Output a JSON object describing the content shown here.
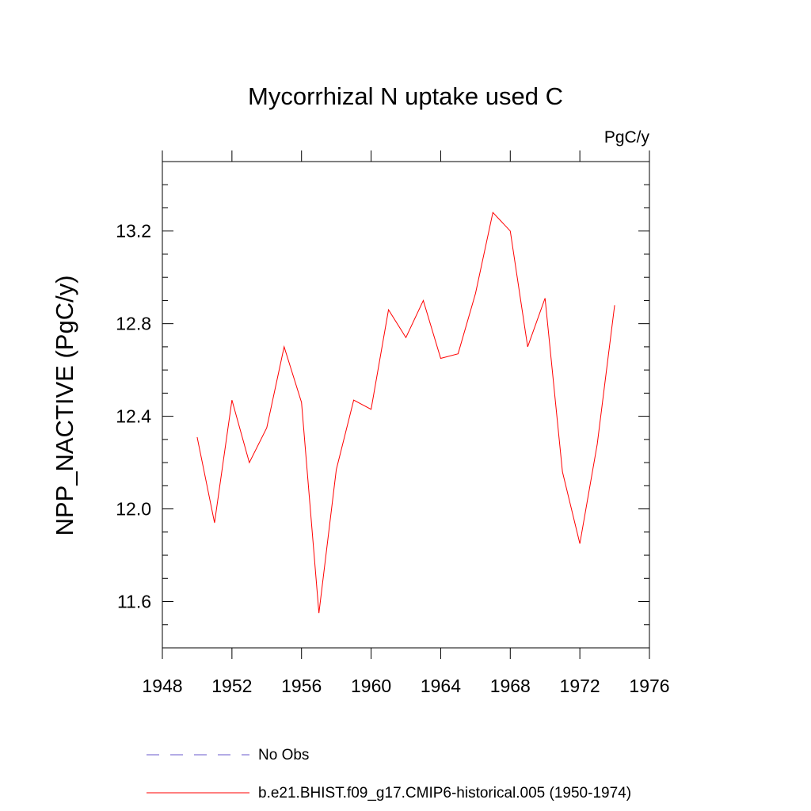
{
  "chart_data": {
    "type": "line",
    "title": "Mycorrhizal N uptake used C",
    "units_label": "PgC/y",
    "ylabel": "NPP_NACTIVE  (PgC/y)",
    "xlabel": "",
    "xlim": [
      1948,
      1976
    ],
    "ylim": [
      11.4,
      13.5
    ],
    "x_ticks": [
      1948,
      1952,
      1956,
      1960,
      1964,
      1968,
      1972,
      1976
    ],
    "y_ticks": [
      11.6,
      12.0,
      12.4,
      12.8,
      13.2
    ],
    "grid": false,
    "legend_position": "bottom",
    "series": [
      {
        "name": "b.e21.BHIST.f09_g17.CMIP6-historical.005 (1950-1974)",
        "color": "#ff0000",
        "style": "solid",
        "x": [
          1950,
          1951,
          1952,
          1953,
          1954,
          1955,
          1956,
          1957,
          1958,
          1959,
          1960,
          1961,
          1962,
          1963,
          1964,
          1965,
          1966,
          1967,
          1968,
          1969,
          1970,
          1971,
          1972,
          1973,
          1974
        ],
        "y": [
          12.31,
          11.94,
          12.47,
          12.2,
          12.35,
          12.7,
          12.46,
          11.55,
          12.17,
          12.47,
          12.43,
          12.86,
          12.74,
          12.9,
          12.65,
          12.67,
          12.93,
          13.28,
          13.2,
          12.7,
          12.91,
          12.16,
          11.85,
          12.28,
          12.88
        ]
      },
      {
        "name": "No Obs",
        "color": "#6a5acd",
        "style": "dashed",
        "x": [],
        "y": []
      }
    ]
  }
}
